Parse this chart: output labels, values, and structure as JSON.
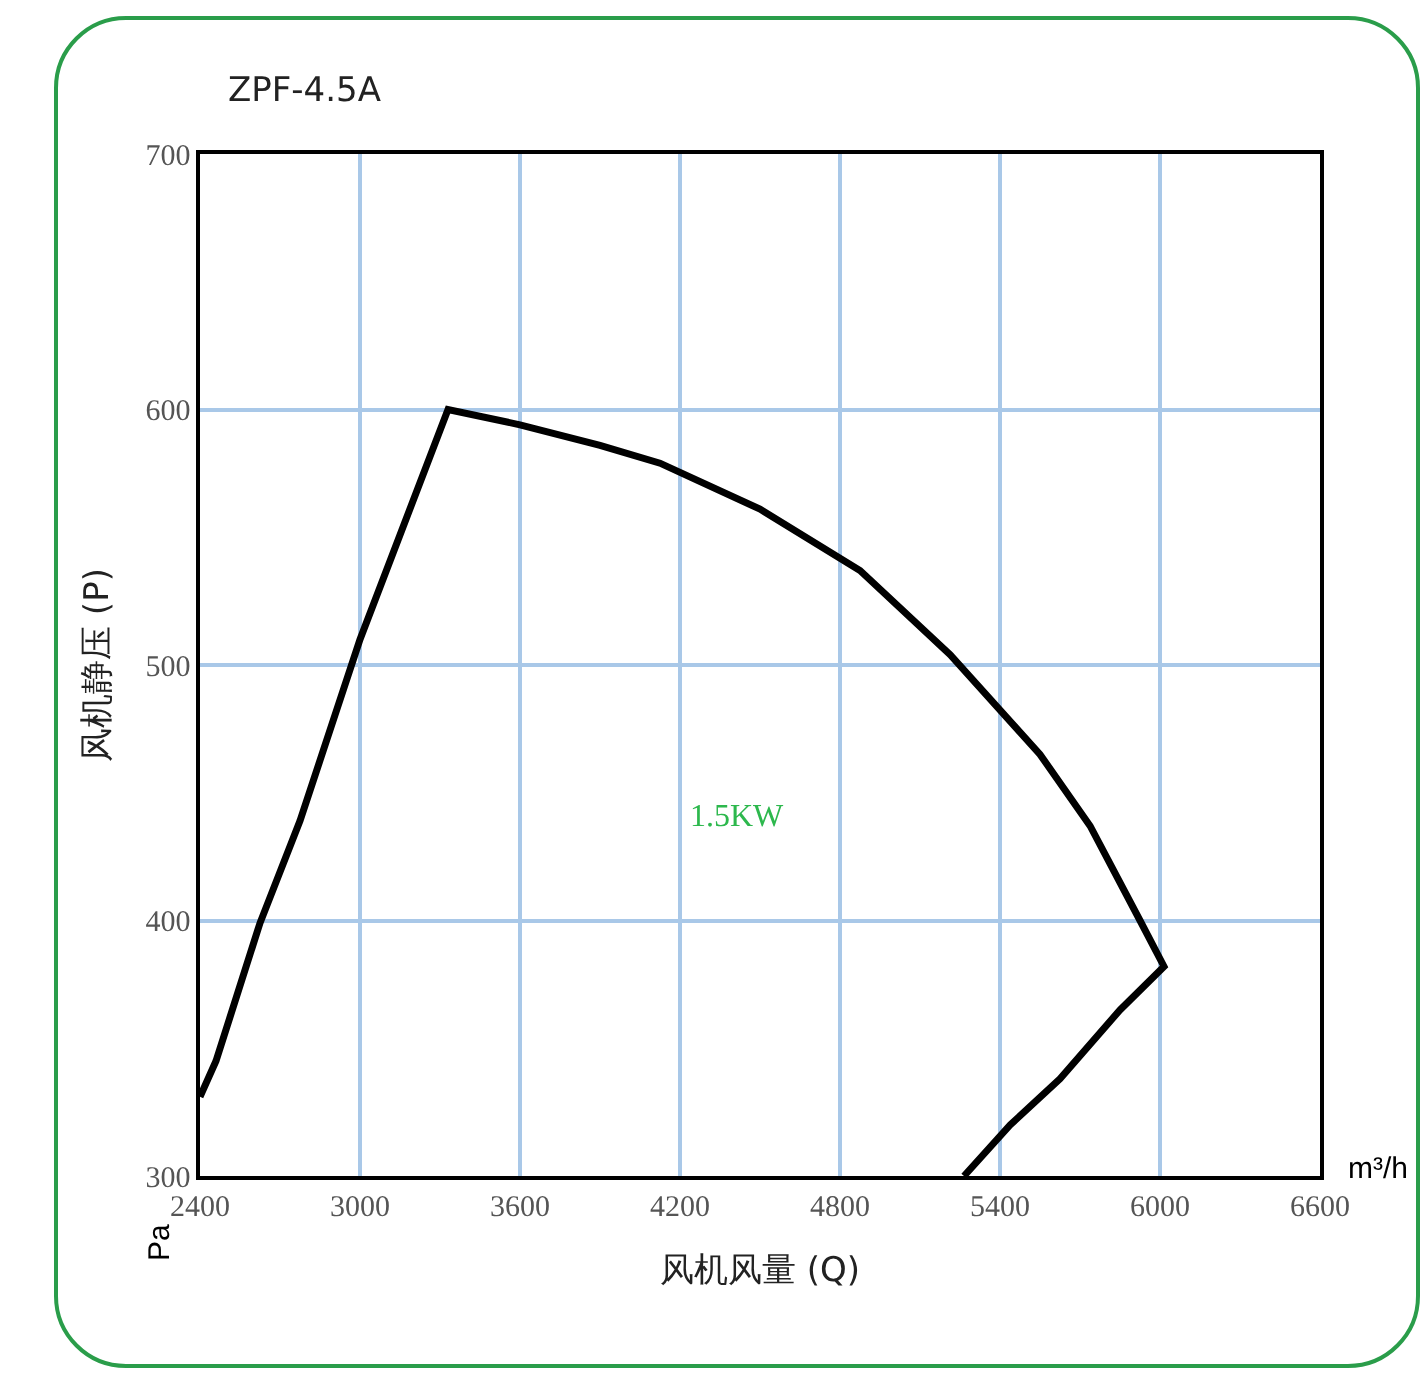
{
  "chart_data": {
    "type": "line",
    "title": "ZPF-4.5A",
    "xlabel": "风机风量 (Q)",
    "ylabel": "风机静压 (P)",
    "annotations": [
      "m³/h",
      "Pa",
      "1.5KW"
    ],
    "series": [
      {
        "color": "#000000",
        "x": [
          2400,
          2460,
          2625,
          2775,
          3000,
          3330,
          3600,
          3900,
          4125,
          4500,
          4875,
          5213,
          5550,
          5738,
          5925,
          6015,
          5850,
          5625,
          5438,
          5265
        ],
        "values": [
          331,
          345,
          399,
          439,
          510,
          600,
          594,
          586,
          579,
          561,
          537,
          504,
          465,
          437,
          400,
          382,
          365,
          338,
          320,
          300
        ]
      }
    ],
    "xlim": [
      2400,
      6600
    ],
    "xticks": [
      2400,
      3000,
      3600,
      4200,
      4800,
      5400,
      6000,
      6600
    ],
    "ylim": [
      300,
      700
    ],
    "yticks": [
      300,
      400,
      500,
      600,
      700
    ],
    "grid": true,
    "marker": "none",
    "line_style": "solid"
  }
}
